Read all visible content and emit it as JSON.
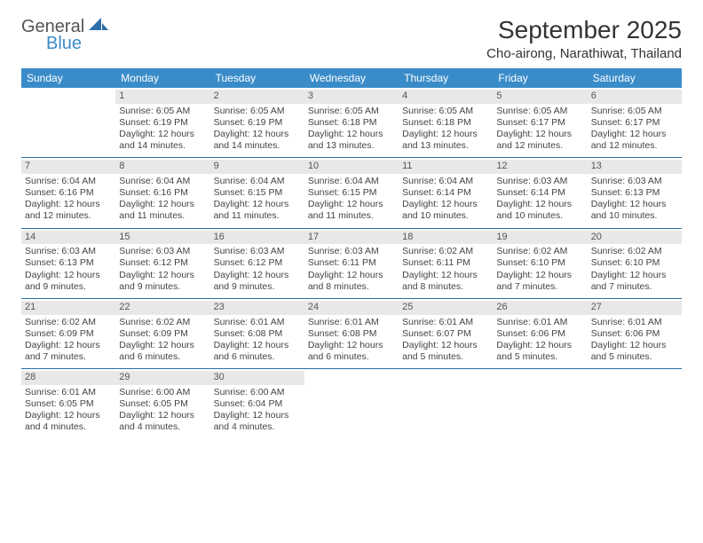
{
  "logo": {
    "line1": "General",
    "line2": "Blue",
    "icon_color": "#2d6fa8",
    "text_color_general": "#555555",
    "text_color_blue": "#3a8cc9"
  },
  "title": "September 2025",
  "location": "Cho-airong, Narathiwat, Thailand",
  "header_bg": "#3a8cc9",
  "day_band_bg": "#e8e8e8",
  "week_border": "#2a6fa3",
  "days_of_week": [
    "Sunday",
    "Monday",
    "Tuesday",
    "Wednesday",
    "Thursday",
    "Friday",
    "Saturday"
  ],
  "weeks": [
    [
      null,
      {
        "n": "1",
        "sr": "Sunrise: 6:05 AM",
        "ss": "Sunset: 6:19 PM",
        "d1": "Daylight: 12 hours",
        "d2": "and 14 minutes."
      },
      {
        "n": "2",
        "sr": "Sunrise: 6:05 AM",
        "ss": "Sunset: 6:19 PM",
        "d1": "Daylight: 12 hours",
        "d2": "and 14 minutes."
      },
      {
        "n": "3",
        "sr": "Sunrise: 6:05 AM",
        "ss": "Sunset: 6:18 PM",
        "d1": "Daylight: 12 hours",
        "d2": "and 13 minutes."
      },
      {
        "n": "4",
        "sr": "Sunrise: 6:05 AM",
        "ss": "Sunset: 6:18 PM",
        "d1": "Daylight: 12 hours",
        "d2": "and 13 minutes."
      },
      {
        "n": "5",
        "sr": "Sunrise: 6:05 AM",
        "ss": "Sunset: 6:17 PM",
        "d1": "Daylight: 12 hours",
        "d2": "and 12 minutes."
      },
      {
        "n": "6",
        "sr": "Sunrise: 6:05 AM",
        "ss": "Sunset: 6:17 PM",
        "d1": "Daylight: 12 hours",
        "d2": "and 12 minutes."
      }
    ],
    [
      {
        "n": "7",
        "sr": "Sunrise: 6:04 AM",
        "ss": "Sunset: 6:16 PM",
        "d1": "Daylight: 12 hours",
        "d2": "and 12 minutes."
      },
      {
        "n": "8",
        "sr": "Sunrise: 6:04 AM",
        "ss": "Sunset: 6:16 PM",
        "d1": "Daylight: 12 hours",
        "d2": "and 11 minutes."
      },
      {
        "n": "9",
        "sr": "Sunrise: 6:04 AM",
        "ss": "Sunset: 6:15 PM",
        "d1": "Daylight: 12 hours",
        "d2": "and 11 minutes."
      },
      {
        "n": "10",
        "sr": "Sunrise: 6:04 AM",
        "ss": "Sunset: 6:15 PM",
        "d1": "Daylight: 12 hours",
        "d2": "and 11 minutes."
      },
      {
        "n": "11",
        "sr": "Sunrise: 6:04 AM",
        "ss": "Sunset: 6:14 PM",
        "d1": "Daylight: 12 hours",
        "d2": "and 10 minutes."
      },
      {
        "n": "12",
        "sr": "Sunrise: 6:03 AM",
        "ss": "Sunset: 6:14 PM",
        "d1": "Daylight: 12 hours",
        "d2": "and 10 minutes."
      },
      {
        "n": "13",
        "sr": "Sunrise: 6:03 AM",
        "ss": "Sunset: 6:13 PM",
        "d1": "Daylight: 12 hours",
        "d2": "and 10 minutes."
      }
    ],
    [
      {
        "n": "14",
        "sr": "Sunrise: 6:03 AM",
        "ss": "Sunset: 6:13 PM",
        "d1": "Daylight: 12 hours",
        "d2": "and 9 minutes."
      },
      {
        "n": "15",
        "sr": "Sunrise: 6:03 AM",
        "ss": "Sunset: 6:12 PM",
        "d1": "Daylight: 12 hours",
        "d2": "and 9 minutes."
      },
      {
        "n": "16",
        "sr": "Sunrise: 6:03 AM",
        "ss": "Sunset: 6:12 PM",
        "d1": "Daylight: 12 hours",
        "d2": "and 9 minutes."
      },
      {
        "n": "17",
        "sr": "Sunrise: 6:03 AM",
        "ss": "Sunset: 6:11 PM",
        "d1": "Daylight: 12 hours",
        "d2": "and 8 minutes."
      },
      {
        "n": "18",
        "sr": "Sunrise: 6:02 AM",
        "ss": "Sunset: 6:11 PM",
        "d1": "Daylight: 12 hours",
        "d2": "and 8 minutes."
      },
      {
        "n": "19",
        "sr": "Sunrise: 6:02 AM",
        "ss": "Sunset: 6:10 PM",
        "d1": "Daylight: 12 hours",
        "d2": "and 7 minutes."
      },
      {
        "n": "20",
        "sr": "Sunrise: 6:02 AM",
        "ss": "Sunset: 6:10 PM",
        "d1": "Daylight: 12 hours",
        "d2": "and 7 minutes."
      }
    ],
    [
      {
        "n": "21",
        "sr": "Sunrise: 6:02 AM",
        "ss": "Sunset: 6:09 PM",
        "d1": "Daylight: 12 hours",
        "d2": "and 7 minutes."
      },
      {
        "n": "22",
        "sr": "Sunrise: 6:02 AM",
        "ss": "Sunset: 6:09 PM",
        "d1": "Daylight: 12 hours",
        "d2": "and 6 minutes."
      },
      {
        "n": "23",
        "sr": "Sunrise: 6:01 AM",
        "ss": "Sunset: 6:08 PM",
        "d1": "Daylight: 12 hours",
        "d2": "and 6 minutes."
      },
      {
        "n": "24",
        "sr": "Sunrise: 6:01 AM",
        "ss": "Sunset: 6:08 PM",
        "d1": "Daylight: 12 hours",
        "d2": "and 6 minutes."
      },
      {
        "n": "25",
        "sr": "Sunrise: 6:01 AM",
        "ss": "Sunset: 6:07 PM",
        "d1": "Daylight: 12 hours",
        "d2": "and 5 minutes."
      },
      {
        "n": "26",
        "sr": "Sunrise: 6:01 AM",
        "ss": "Sunset: 6:06 PM",
        "d1": "Daylight: 12 hours",
        "d2": "and 5 minutes."
      },
      {
        "n": "27",
        "sr": "Sunrise: 6:01 AM",
        "ss": "Sunset: 6:06 PM",
        "d1": "Daylight: 12 hours",
        "d2": "and 5 minutes."
      }
    ],
    [
      {
        "n": "28",
        "sr": "Sunrise: 6:01 AM",
        "ss": "Sunset: 6:05 PM",
        "d1": "Daylight: 12 hours",
        "d2": "and 4 minutes."
      },
      {
        "n": "29",
        "sr": "Sunrise: 6:00 AM",
        "ss": "Sunset: 6:05 PM",
        "d1": "Daylight: 12 hours",
        "d2": "and 4 minutes."
      },
      {
        "n": "30",
        "sr": "Sunrise: 6:00 AM",
        "ss": "Sunset: 6:04 PM",
        "d1": "Daylight: 12 hours",
        "d2": "and 4 minutes."
      },
      null,
      null,
      null,
      null
    ]
  ]
}
